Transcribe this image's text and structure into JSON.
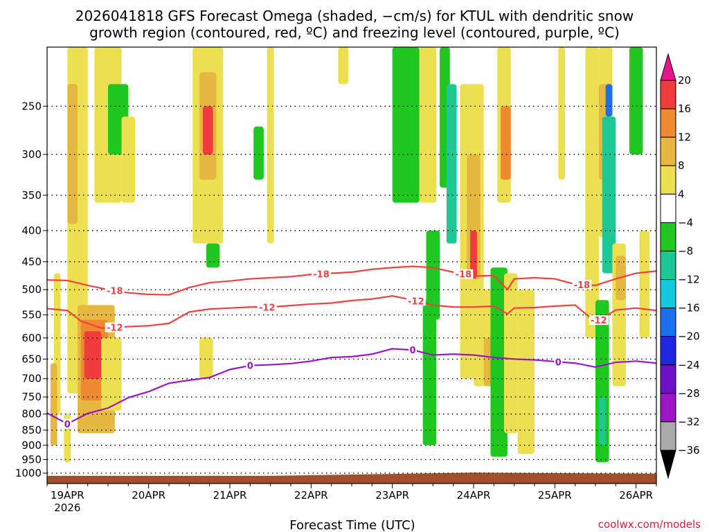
{
  "chart_data": {
    "type": "heatmap",
    "title_line1": "2026041818 GFS Forecast Omega (shaded, −cm/s) for KTUL with dendritic snow",
    "title_line2": "growth region (contoured, red, ºC) and freezing level (contoured, purple, ºC)",
    "xlabel": "Forecast Time (UTC)",
    "ylabel": "",
    "credit": "coolwx.com/models",
    "x_range_hours": [
      -6,
      174
    ],
    "x_ticks": [
      {
        "hour": 0,
        "label": "19APR",
        "sublabel": "2026"
      },
      {
        "hour": 24,
        "label": "20APR"
      },
      {
        "hour": 48,
        "label": "21APR"
      },
      {
        "hour": 72,
        "label": "22APR"
      },
      {
        "hour": 96,
        "label": "23APR"
      },
      {
        "hour": 120,
        "label": "24APR"
      },
      {
        "hour": 144,
        "label": "25APR"
      },
      {
        "hour": 168,
        "label": "26APR"
      }
    ],
    "y_range_hpa": [
      1040,
      200
    ],
    "y_ticks": [
      250,
      300,
      350,
      400,
      450,
      500,
      550,
      600,
      650,
      700,
      750,
      800,
      850,
      900,
      950,
      1000
    ],
    "colorbar": {
      "levels": [
        20,
        16,
        12,
        8,
        4,
        -4,
        -8,
        -12,
        -16,
        -20,
        -24,
        -28,
        -32,
        -36
      ],
      "colors": [
        "#e8148a",
        "#f03c3c",
        "#ee8a30",
        "#e6b840",
        "#ece050",
        "#ffffff",
        "#1ec81e",
        "#1ec894",
        "#14c8e0",
        "#1e6ef0",
        "#1e28e0",
        "#6e10c8",
        "#a014c8",
        "#aaaaaa",
        "#000000"
      ]
    },
    "contours": [
      {
        "label": "-18",
        "color": "#f04040",
        "points": [
          [
            -6,
            482
          ],
          [
            0,
            483
          ],
          [
            6,
            492
          ],
          [
            12,
            500
          ],
          [
            18,
            506
          ],
          [
            24,
            509
          ],
          [
            30,
            510
          ],
          [
            36,
            496
          ],
          [
            42,
            487
          ],
          [
            48,
            484
          ],
          [
            54,
            480
          ],
          [
            60,
            478
          ],
          [
            66,
            476
          ],
          [
            72,
            472
          ],
          [
            78,
            470
          ],
          [
            84,
            468
          ],
          [
            90,
            463
          ],
          [
            96,
            460
          ],
          [
            102,
            458
          ],
          [
            108,
            460
          ],
          [
            114,
            468
          ],
          [
            120,
            475
          ],
          [
            126,
            474
          ],
          [
            130,
            500
          ],
          [
            132,
            480
          ],
          [
            138,
            478
          ],
          [
            144,
            480
          ],
          [
            150,
            490
          ],
          [
            156,
            492
          ],
          [
            162,
            480
          ],
          [
            168,
            470
          ],
          [
            174,
            466
          ]
        ],
        "label_hours": [
          14,
          75,
          117,
          152
        ]
      },
      {
        "label": "-12",
        "color": "#f04040",
        "points": [
          [
            -6,
            537
          ],
          [
            0,
            541
          ],
          [
            4,
            563
          ],
          [
            10,
            578
          ],
          [
            18,
            575
          ],
          [
            24,
            573
          ],
          [
            30,
            568
          ],
          [
            36,
            544
          ],
          [
            42,
            538
          ],
          [
            48,
            536
          ],
          [
            54,
            534
          ],
          [
            60,
            534
          ],
          [
            66,
            531
          ],
          [
            72,
            528
          ],
          [
            78,
            526
          ],
          [
            84,
            521
          ],
          [
            90,
            518
          ],
          [
            96,
            512
          ],
          [
            102,
            520
          ],
          [
            108,
            530
          ],
          [
            114,
            534
          ],
          [
            120,
            534
          ],
          [
            126,
            532
          ],
          [
            130,
            548
          ],
          [
            132,
            536
          ],
          [
            138,
            535
          ],
          [
            144,
            532
          ],
          [
            150,
            530
          ],
          [
            156,
            565
          ],
          [
            162,
            540
          ],
          [
            168,
            536
          ],
          [
            174,
            541
          ]
        ],
        "label_hours": [
          14,
          59,
          103,
          157
        ]
      },
      {
        "label": "0",
        "color": "#9a14c8",
        "points": [
          [
            -6,
            797
          ],
          [
            0,
            830
          ],
          [
            6,
            798
          ],
          [
            12,
            782
          ],
          [
            18,
            752
          ],
          [
            24,
            735
          ],
          [
            30,
            712
          ],
          [
            36,
            704
          ],
          [
            42,
            697
          ],
          [
            48,
            676
          ],
          [
            54,
            666
          ],
          [
            60,
            664
          ],
          [
            66,
            661
          ],
          [
            72,
            655
          ],
          [
            78,
            646
          ],
          [
            84,
            644
          ],
          [
            90,
            638
          ],
          [
            96,
            625
          ],
          [
            102,
            628
          ],
          [
            108,
            640
          ],
          [
            114,
            638
          ],
          [
            120,
            640
          ],
          [
            126,
            646
          ],
          [
            132,
            650
          ],
          [
            138,
            652
          ],
          [
            144,
            656
          ],
          [
            150,
            660
          ],
          [
            156,
            670
          ],
          [
            162,
            658
          ],
          [
            168,
            655
          ],
          [
            174,
            660
          ]
        ],
        "label_hours": [
          0,
          54,
          102,
          145
        ]
      }
    ],
    "omega_cells": [
      {
        "hour": [
          -4,
          -2
        ],
        "hpa": [
          470,
          800
        ],
        "value": 5
      },
      {
        "hour": [
          0,
          6
        ],
        "hpa": [
          200,
          740
        ],
        "value": 6
      },
      {
        "hour": [
          0,
          3
        ],
        "hpa": [
          230,
          390
        ],
        "value": 9
      },
      {
        "hour": [
          3,
          14
        ],
        "hpa": [
          530,
          860
        ],
        "value": 8
      },
      {
        "hour": [
          4,
          12
        ],
        "hpa": [
          560,
          760
        ],
        "value": 12
      },
      {
        "hour": [
          5,
          10
        ],
        "hpa": [
          585,
          700
        ],
        "value": 17
      },
      {
        "hour": [
          -5,
          -3
        ],
        "hpa": [
          660,
          900
        ],
        "value": 8
      },
      {
        "hour": [
          -1,
          1
        ],
        "hpa": [
          800,
          960
        ],
        "value": 6
      },
      {
        "hour": [
          8,
          16
        ],
        "hpa": [
          200,
          360
        ],
        "value": 5
      },
      {
        "hour": [
          12,
          18
        ],
        "hpa": [
          230,
          300
        ],
        "value": -8
      },
      {
        "hour": [
          16,
          20
        ],
        "hpa": [
          260,
          360
        ],
        "value": 5
      },
      {
        "hour": [
          10,
          16
        ],
        "hpa": [
          600,
          790
        ],
        "value": 5
      },
      {
        "hour": [
          37,
          46
        ],
        "hpa": [
          200,
          420
        ],
        "value": 5
      },
      {
        "hour": [
          39,
          44
        ],
        "hpa": [
          220,
          330
        ],
        "value": 10
      },
      {
        "hour": [
          40,
          43
        ],
        "hpa": [
          250,
          300
        ],
        "value": 16
      },
      {
        "hour": [
          41,
          45
        ],
        "hpa": [
          420,
          460
        ],
        "value": -8
      },
      {
        "hour": [
          39,
          43
        ],
        "hpa": [
          600,
          700
        ],
        "value": 5
      },
      {
        "hour": [
          55,
          58
        ],
        "hpa": [
          270,
          330
        ],
        "value": -8
      },
      {
        "hour": [
          59,
          61
        ],
        "hpa": [
          200,
          420
        ],
        "value": 5
      },
      {
        "hour": [
          80,
          83
        ],
        "hpa": [
          200,
          230
        ],
        "value": 5
      },
      {
        "hour": [
          96,
          104
        ],
        "hpa": [
          200,
          360
        ],
        "value": -8
      },
      {
        "hour": [
          104,
          109
        ],
        "hpa": [
          200,
          360
        ],
        "value": 5
      },
      {
        "hour": [
          106,
          110
        ],
        "hpa": [
          400,
          560
        ],
        "value": -8
      },
      {
        "hour": [
          105,
          109
        ],
        "hpa": [
          520,
          900
        ],
        "value": -8
      },
      {
        "hour": [
          110,
          113
        ],
        "hpa": [
          200,
          340
        ],
        "value": -8
      },
      {
        "hour": [
          112,
          115
        ],
        "hpa": [
          230,
          420
        ],
        "value": -12
      },
      {
        "hour": [
          116,
          123
        ],
        "hpa": [
          230,
          700
        ],
        "value": 5
      },
      {
        "hour": [
          118,
          122
        ],
        "hpa": [
          300,
          480
        ],
        "value": 10
      },
      {
        "hour": [
          119,
          121
        ],
        "hpa": [
          400,
          480
        ],
        "value": 16
      },
      {
        "hour": [
          120,
          127
        ],
        "hpa": [
          500,
          720
        ],
        "value": 5
      },
      {
        "hour": [
          123,
          127
        ],
        "hpa": [
          600,
          720
        ],
        "value": 11
      },
      {
        "hour": [
          125,
          130
        ],
        "hpa": [
          460,
          940
        ],
        "value": -8
      },
      {
        "hour": [
          127,
          131
        ],
        "hpa": [
          200,
          360
        ],
        "value": 6
      },
      {
        "hour": [
          128,
          131
        ],
        "hpa": [
          250,
          330
        ],
        "value": 13
      },
      {
        "hour": [
          129,
          133
        ],
        "hpa": [
          470,
          860
        ],
        "value": 5
      },
      {
        "hour": [
          133,
          138
        ],
        "hpa": [
          500,
          930
        ],
        "value": 5
      },
      {
        "hour": [
          145,
          147
        ],
        "hpa": [
          200,
          330
        ],
        "value": 5
      },
      {
        "hour": [
          153,
          157
        ],
        "hpa": [
          200,
          600
        ],
        "value": 5
      },
      {
        "hour": [
          157,
          161
        ],
        "hpa": [
          200,
          410
        ],
        "value": 5
      },
      {
        "hour": [
          157,
          160
        ],
        "hpa": [
          230,
          330
        ],
        "value": 11
      },
      {
        "hour": [
          159,
          161
        ],
        "hpa": [
          230,
          260
        ],
        "value": -20
      },
      {
        "hour": [
          158,
          162
        ],
        "hpa": [
          260,
          470
        ],
        "value": -12
      },
      {
        "hour": [
          156,
          160
        ],
        "hpa": [
          520,
          960
        ],
        "value": -8
      },
      {
        "hour": [
          157,
          159
        ],
        "hpa": [
          750,
          900
        ],
        "value": -12
      },
      {
        "hour": [
          161,
          165
        ],
        "hpa": [
          420,
          720
        ],
        "value": 6
      },
      {
        "hour": [
          162,
          165
        ],
        "hpa": [
          440,
          520
        ],
        "value": 10
      },
      {
        "hour": [
          166,
          170
        ],
        "hpa": [
          200,
          300
        ],
        "value": -8
      },
      {
        "hour": [
          169,
          172
        ],
        "hpa": [
          400,
          600
        ],
        "value": 5
      }
    ],
    "terrain": {
      "color": "#a0502a",
      "pressure_hpa": [
        [
          -6,
          1010
        ],
        [
          60,
          1010
        ],
        [
          96,
          1003
        ],
        [
          120,
          998
        ],
        [
          174,
          1002
        ]
      ]
    }
  }
}
